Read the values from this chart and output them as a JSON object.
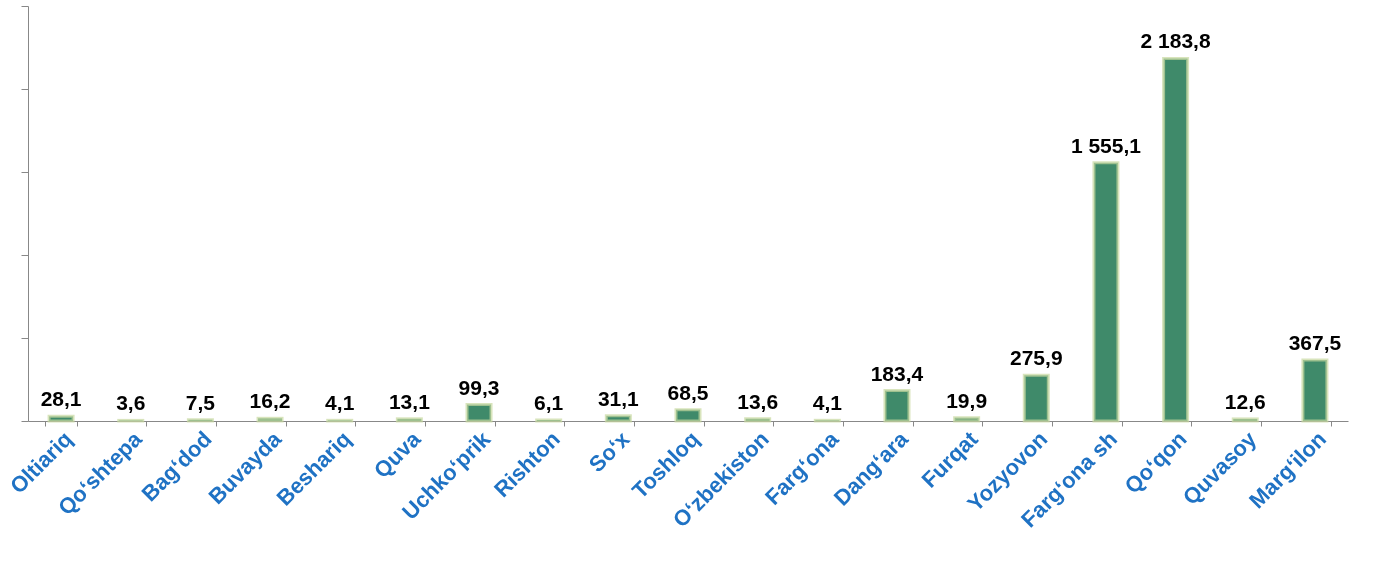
{
  "chart_data": {
    "type": "bar",
    "categories": [
      "Oltiariq",
      "Qo‘shtepa",
      "Bag‘dod",
      "Buvayda",
      "Beshariq",
      "Quva",
      "Uchko‘prik",
      "Rishton",
      "So‘x",
      "Toshloq",
      "O‘zbekiston",
      "Farg‘ona",
      "Dang‘ara",
      "Furqat",
      "Yozyovon",
      "Farg‘ona sh",
      "Qo‘qon",
      "Quvasoy",
      "Marg‘ilon"
    ],
    "values": [
      28.1,
      3.6,
      7.5,
      16.2,
      4.1,
      13.1,
      99.3,
      6.1,
      31.1,
      68.5,
      13.6,
      4.1,
      183.4,
      19.9,
      275.9,
      1555.1,
      2183.8,
      12.6,
      367.5
    ],
    "value_labels": [
      "28,1",
      "3,6",
      "7,5",
      "16,2",
      "4,1",
      "13,1",
      "99,3",
      "6,1",
      "31,1",
      "68,5",
      "13,6",
      "4,1",
      "183,4",
      "19,9",
      "275,9",
      "1 555,1",
      "2 183,8",
      "12,6",
      "367,5"
    ],
    "color": "#3f8a6a",
    "ylim": [
      0,
      2500
    ],
    "yticks": [
      {
        "value": 0,
        "label": null
      },
      {
        "value": 500,
        "label": null
      },
      {
        "value": 1000,
        "label": null
      },
      {
        "value": 1500,
        "label": null
      },
      {
        "value": 2000,
        "label": null
      },
      {
        "value": 2500,
        "label": null
      }
    ],
    "tick_labels": "x",
    "grid": false
  }
}
